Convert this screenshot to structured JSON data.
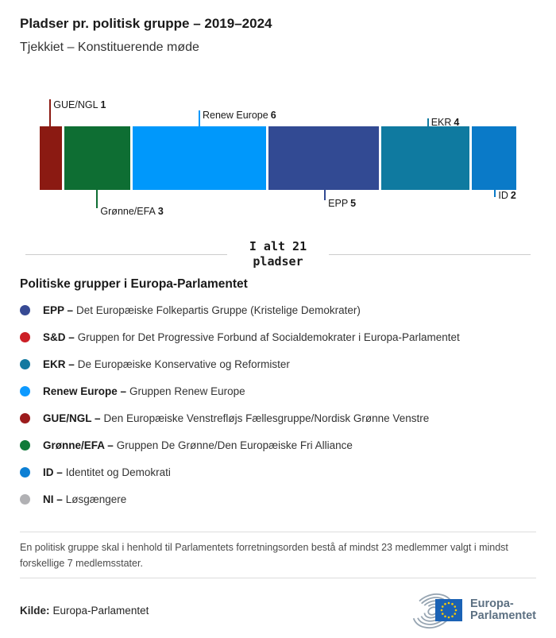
{
  "header": {
    "title": "Pladser pr. politisk gruppe – 2019–2024",
    "subtitle": "Tjekkiet – Konstituerende møde"
  },
  "chart_data": {
    "type": "bar",
    "stacked": true,
    "orientation": "horizontal",
    "title": "Pladser pr. politisk gruppe – 2019–2024",
    "subtitle": "Tjekkiet – Konstituerende møde",
    "total_seats": 21,
    "total_label_line1": "I alt 21",
    "total_label_line2": "pladser",
    "categories": [
      "GUE/NGL",
      "Grønne/EFA",
      "Renew Europe",
      "EPP",
      "EKR",
      "ID"
    ],
    "values": [
      1,
      3,
      6,
      5,
      4,
      2
    ],
    "segments": [
      {
        "group": "GUE/NGL",
        "seats": 1,
        "color": "#8b1a12",
        "label_position": "top"
      },
      {
        "group": "Grønne/EFA",
        "seats": 3,
        "color": "#0e6e33",
        "label_position": "bottom"
      },
      {
        "group": "Renew Europe",
        "seats": 6,
        "color": "#0098fb",
        "label_position": "top"
      },
      {
        "group": "EPP",
        "seats": 5,
        "color": "#324a93",
        "label_position": "bottom"
      },
      {
        "group": "EKR",
        "seats": 4,
        "color": "#0f7aa0",
        "label_position": "top"
      },
      {
        "group": "ID",
        "seats": 2,
        "color": "#0a7ac8",
        "label_position": "bottom"
      }
    ]
  },
  "legend": {
    "heading": "Politiske grupper i Europa-Parlamentet",
    "items": [
      {
        "label": "EPP –",
        "desc": "Det Europæiske Folkepartis Gruppe (Kristelige Demokrater)",
        "color": "#374a94"
      },
      {
        "label": "S&D –",
        "desc": "Gruppen for Det Progressive Forbund af Socialdemokrater i Europa-Parlamentet",
        "color": "#cc1f26"
      },
      {
        "label": "EKR –",
        "desc": "De Europæiske Konservative og Reformister",
        "color": "#1279a0"
      },
      {
        "label": "Renew Europe –",
        "desc": "Gruppen Renew Europe",
        "color": "#0d9aff"
      },
      {
        "label": "GUE/NGL –",
        "desc": "Den Europæiske Venstrefløjs Fællesgruppe/Nordisk Grønne Venstre",
        "color": "#9c1b1c"
      },
      {
        "label": "Grønne/EFA –",
        "desc": "Gruppen De Grønne/Den Europæiske Fri Alliance",
        "color": "#0f7a38"
      },
      {
        "label": "ID –",
        "desc": "Identitet og Demokrati",
        "color": "#0c7fd4"
      },
      {
        "label": "NI –",
        "desc": "Løsgængere",
        "color": "#b1b1b4"
      }
    ]
  },
  "footer": {
    "note": "En politisk gruppe skal i henhold til Parlamentets forretningsorden bestå af mindst 23 medlemmer valgt i mindst forskellige 7 medlemsstater.",
    "source_label": "Kilde:",
    "source_value": "Europa-Parlamentet",
    "logo_line1": "Europa-",
    "logo_line2": "Parlamentet",
    "logo_icons": [
      "hemicycle-icon",
      "eu-flag-icon"
    ],
    "eu_flag_color": "#1b62b5",
    "eu_star_color": "#ffcc00"
  }
}
